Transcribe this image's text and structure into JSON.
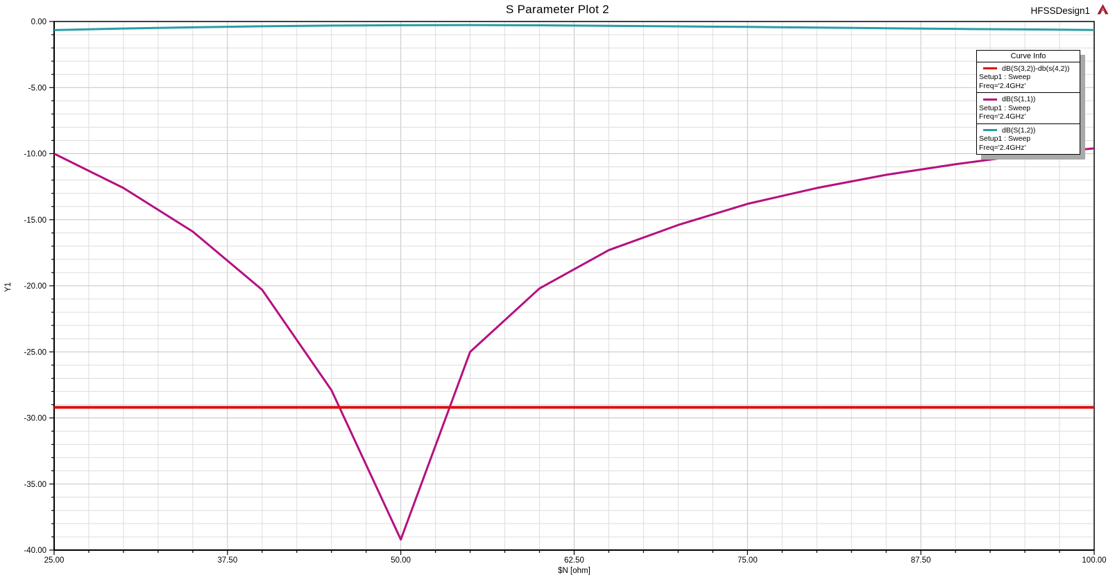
{
  "header": {
    "title": "S Parameter Plot 2",
    "design_label": "HFSSDesign1",
    "logo_icon": "ansoft-triangle-logo",
    "logo_color": "#9e1b32"
  },
  "axes": {
    "x": {
      "title": "$N [ohm]",
      "min": 25,
      "max": 100,
      "minor_step": 2.5,
      "tick_values": [
        25,
        37.5,
        50,
        62.5,
        75,
        87.5,
        100
      ],
      "tick_labels": [
        "25.00",
        "37.50",
        "50.00",
        "62.50",
        "75.00",
        "87.50",
        "100.00"
      ]
    },
    "y": {
      "title": "Y1",
      "min": -40,
      "max": 0,
      "minor_step": 1,
      "tick_values": [
        0,
        -5,
        -10,
        -15,
        -20,
        -25,
        -30,
        -35,
        -40
      ],
      "tick_labels": [
        "0.00",
        "-5.00",
        "-10.00",
        "-15.00",
        "-20.00",
        "-25.00",
        "-30.00",
        "-35.00",
        "-40.00"
      ]
    }
  },
  "legend": {
    "title": "Curve Info",
    "entries": [
      {
        "label": "dB(S(3,2))-db(s(4,2))",
        "setup": "Setup1 : Sweep",
        "freq": "Freq='2.4GHz'",
        "color": "#dd1111"
      },
      {
        "label": "dB(S(1,1))",
        "setup": "Setup1 : Sweep",
        "freq": "Freq='2.4GHz'",
        "color": "#b5107f"
      },
      {
        "label": "dB(S(1,2))",
        "setup": "Setup1 : Sweep",
        "freq": "Freq='2.4GHz'",
        "color": "#2a9da6"
      }
    ]
  },
  "chart_data": {
    "type": "line",
    "title": "S Parameter Plot 2",
    "xlabel": "$N [ohm]",
    "ylabel": "Y1",
    "xlim": [
      25,
      100
    ],
    "ylim": [
      -40,
      0
    ],
    "grid": "major+minor",
    "legend_position": "top-right",
    "x": [
      25,
      30,
      35,
      40,
      45,
      50,
      55,
      60,
      65,
      70,
      75,
      80,
      85,
      90,
      95,
      100
    ],
    "series": [
      {
        "name": "dB(S(3,2))-db(s(4,2))",
        "color": "#dd1111",
        "width": 4,
        "values": [
          -29.2,
          -29.2,
          -29.2,
          -29.2,
          -29.2,
          -29.2,
          -29.2,
          -29.2,
          -29.2,
          -29.2,
          -29.2,
          -29.2,
          -29.2,
          -29.2,
          -29.2,
          -29.2
        ]
      },
      {
        "name": "dB(S(1,1))",
        "color": "#b5107f",
        "width": 3,
        "values": [
          -10.0,
          -12.6,
          -15.9,
          -20.3,
          -27.9,
          -39.2,
          -25.0,
          -20.2,
          -17.3,
          -15.4,
          -13.8,
          -12.6,
          -11.6,
          -10.8,
          -10.1,
          -9.6
        ]
      },
      {
        "name": "dB(S(1,2))",
        "color": "#2a9da6",
        "width": 3,
        "values": [
          -0.65,
          -0.53,
          -0.44,
          -0.36,
          -0.31,
          -0.28,
          -0.27,
          -0.29,
          -0.33,
          -0.37,
          -0.41,
          -0.46,
          -0.51,
          -0.56,
          -0.6,
          -0.64
        ]
      }
    ],
    "colors": {
      "grid_minor": "#dcdcdc",
      "grid_major": "#c3c3c3",
      "axis": "#000000",
      "background": "#ffffff"
    }
  }
}
